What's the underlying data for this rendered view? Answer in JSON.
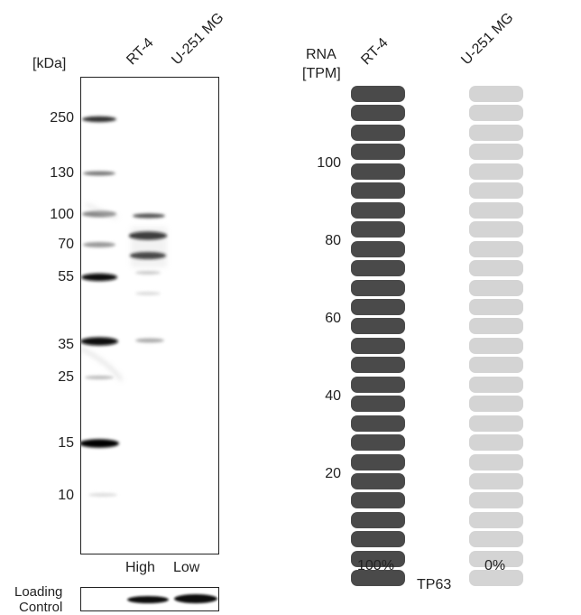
{
  "western_blot": {
    "unit_label": "[kDa]",
    "lanes": [
      "RT-4",
      "U-251 MG"
    ],
    "markers": [
      "250",
      "130",
      "100",
      "70",
      "55",
      "35",
      "25",
      "15",
      "10"
    ],
    "lane_levels": [
      "High",
      "Low"
    ],
    "loading_control_line1": "Loading",
    "loading_control_line2": "Control"
  },
  "rna": {
    "header_line1": "RNA",
    "header_line2": "[TPM]",
    "cell_lines": [
      "RT-4",
      "U-251 MG"
    ],
    "ticks": [
      "100",
      "80",
      "60",
      "40",
      "20"
    ],
    "percentages": [
      "100%",
      "0%"
    ],
    "gene": "TP63",
    "colors": {
      "high": "#4a4a4a",
      "low": "#d4d4d4"
    }
  },
  "chart_data": {
    "type": "bar",
    "categories": [
      "RT-4",
      "U-251 MG"
    ],
    "values": [
      100,
      0
    ],
    "ylabel": "RNA [TPM]",
    "xlabel": "TP63",
    "y_ticks": [
      20,
      40,
      60,
      80,
      100
    ]
  }
}
